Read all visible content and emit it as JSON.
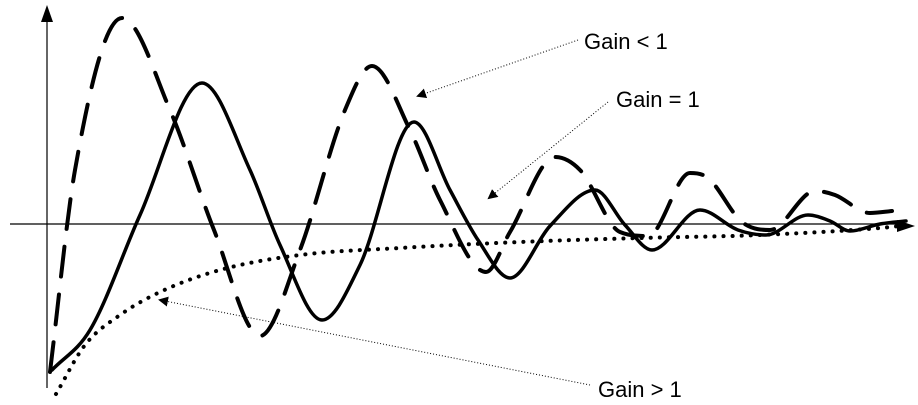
{
  "annotations": {
    "gain_lt_1": "Gain < 1",
    "gain_eq_1": "Gain = 1",
    "gain_gt_1": "Gain > 1"
  },
  "curves": [
    {
      "key": "gain_lt_1",
      "style": "dashed",
      "behavior": "damped oscillation, larger amplitude"
    },
    {
      "key": "gain_eq_1",
      "style": "solid",
      "behavior": "damped oscillation"
    },
    {
      "key": "gain_gt_1",
      "style": "dotted",
      "behavior": "monotonic rise, no oscillation"
    }
  ],
  "colors": {
    "ink": "#000000",
    "background": "#ffffff"
  }
}
